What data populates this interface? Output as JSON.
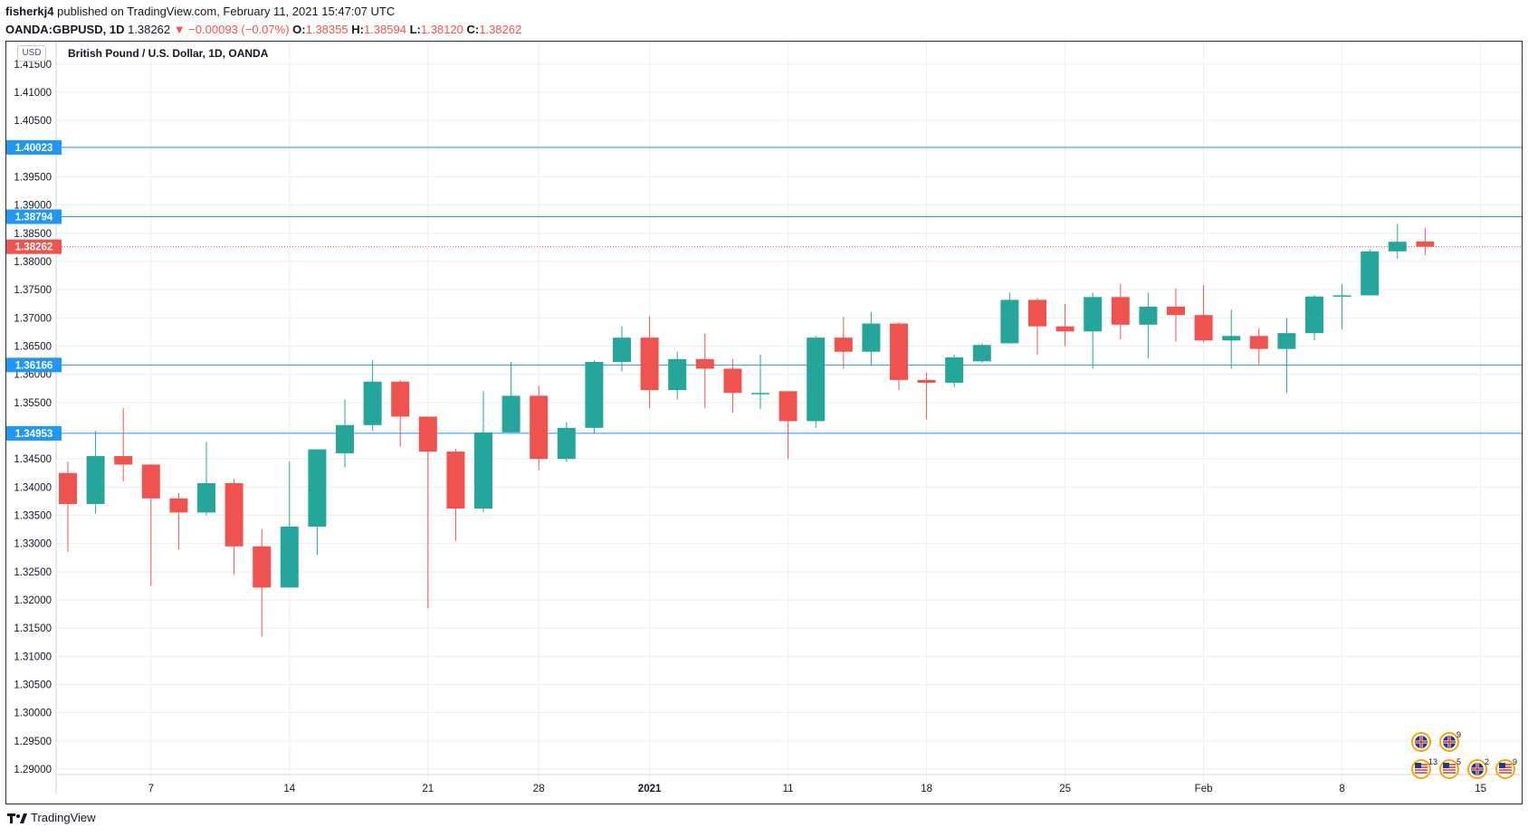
{
  "header": {
    "publisher": "fisherkj4",
    "published_text": "published on TradingView.com, February 11, 2021 15:47:07 UTC",
    "symbol": "OANDA:GBPUSD, 1D",
    "last": "1.38262",
    "change_arrow": "▼",
    "change": "−0.00093 (−0.07%)",
    "o_label": "O:",
    "o_value": "1.38355",
    "h_label": "H:",
    "h_value": "1.38594",
    "l_label": "L:",
    "l_value": "1.38120",
    "c_label": "C:",
    "c_value": "1.38262"
  },
  "currency_badge": "USD",
  "footer": {
    "brand": "TradingView"
  },
  "colors": {
    "up": "#26a69a",
    "down": "#ef5350",
    "hline": "#2196f3",
    "grid": "#eceef2"
  },
  "chart_data": {
    "type": "candlestick",
    "title": "British Pound / U.S. Dollar, 1D, OANDA",
    "ylim": [
      1.2875,
      1.4175
    ],
    "y_ticks": [
      "1.41500",
      "1.41000",
      "1.40500",
      "1.40000",
      "1.39500",
      "1.39000",
      "1.38500",
      "1.38000",
      "1.37500",
      "1.37000",
      "1.36500",
      "1.36000",
      "1.35500",
      "1.35000",
      "1.34500",
      "1.34000",
      "1.33500",
      "1.33000",
      "1.32500",
      "1.32000",
      "1.31500",
      "1.31000",
      "1.30500",
      "1.30000",
      "1.29500",
      "1.29000"
    ],
    "x_ticks": [
      {
        "label": "7",
        "index": 3
      },
      {
        "label": "14",
        "index": 8
      },
      {
        "label": "21",
        "index": 13
      },
      {
        "label": "28",
        "index": 17
      },
      {
        "label": "2021",
        "index": 21
      },
      {
        "label": "11",
        "index": 26
      },
      {
        "label": "18",
        "index": 31
      },
      {
        "label": "25",
        "index": 36
      },
      {
        "label": "Feb",
        "index": 41
      },
      {
        "label": "8",
        "index": 46
      },
      {
        "label": "15",
        "index": 51
      }
    ],
    "horizontal_lines": [
      {
        "value": 1.40023,
        "label": "1.40023"
      },
      {
        "value": 1.38794,
        "label": "1.38794"
      },
      {
        "value": 1.36166,
        "label": "1.36166"
      },
      {
        "value": 1.34953,
        "label": "1.34953"
      }
    ],
    "last_price": {
      "value": 1.38262,
      "label": "1.38262"
    },
    "candles": [
      {
        "date": "2020-12-02",
        "o": 1.3425,
        "h": 1.3445,
        "l": 1.3285,
        "c": 1.337
      },
      {
        "date": "2020-12-03",
        "o": 1.337,
        "h": 1.35,
        "l": 1.3353,
        "c": 1.3455
      },
      {
        "date": "2020-12-04",
        "o": 1.3455,
        "h": 1.354,
        "l": 1.341,
        "c": 1.344
      },
      {
        "date": "2020-12-07",
        "o": 1.344,
        "h": 1.344,
        "l": 1.3225,
        "c": 1.338
      },
      {
        "date": "2020-12-08",
        "o": 1.338,
        "h": 1.339,
        "l": 1.329,
        "c": 1.3355
      },
      {
        "date": "2020-12-09",
        "o": 1.3355,
        "h": 1.348,
        "l": 1.335,
        "c": 1.3407
      },
      {
        "date": "2020-12-10",
        "o": 1.3407,
        "h": 1.3415,
        "l": 1.3245,
        "c": 1.3295
      },
      {
        "date": "2020-12-11",
        "o": 1.3295,
        "h": 1.3325,
        "l": 1.3135,
        "c": 1.3222
      },
      {
        "date": "2020-12-14",
        "o": 1.3222,
        "h": 1.3445,
        "l": 1.3222,
        "c": 1.333
      },
      {
        "date": "2020-12-15",
        "o": 1.333,
        "h": 1.3467,
        "l": 1.328,
        "c": 1.3467
      },
      {
        "date": "2020-12-16",
        "o": 1.346,
        "h": 1.3555,
        "l": 1.3435,
        "c": 1.351
      },
      {
        "date": "2020-12-17",
        "o": 1.351,
        "h": 1.3625,
        "l": 1.35,
        "c": 1.3587
      },
      {
        "date": "2020-12-18",
        "o": 1.3587,
        "h": 1.359,
        "l": 1.3472,
        "c": 1.3525
      },
      {
        "date": "2020-12-21",
        "o": 1.3525,
        "h": 1.3525,
        "l": 1.3185,
        "c": 1.3463
      },
      {
        "date": "2020-12-22",
        "o": 1.3463,
        "h": 1.3468,
        "l": 1.3305,
        "c": 1.3362
      },
      {
        "date": "2020-12-23",
        "o": 1.3362,
        "h": 1.357,
        "l": 1.3355,
        "c": 1.3497
      },
      {
        "date": "2020-12-24",
        "o": 1.3497,
        "h": 1.3622,
        "l": 1.3495,
        "c": 1.3562
      },
      {
        "date": "2020-12-28",
        "o": 1.3562,
        "h": 1.358,
        "l": 1.343,
        "c": 1.345
      },
      {
        "date": "2020-12-29",
        "o": 1.345,
        "h": 1.3515,
        "l": 1.3445,
        "c": 1.3505
      },
      {
        "date": "2020-12-30",
        "o": 1.3505,
        "h": 1.3625,
        "l": 1.3495,
        "c": 1.3622
      },
      {
        "date": "2020-12-31",
        "o": 1.3622,
        "h": 1.3685,
        "l": 1.3605,
        "c": 1.3665
      },
      {
        "date": "2021-01-04",
        "o": 1.3665,
        "h": 1.3703,
        "l": 1.354,
        "c": 1.3572
      },
      {
        "date": "2021-01-05",
        "o": 1.3572,
        "h": 1.364,
        "l": 1.3555,
        "c": 1.3627
      },
      {
        "date": "2021-01-06",
        "o": 1.3627,
        "h": 1.3672,
        "l": 1.354,
        "c": 1.361
      },
      {
        "date": "2021-01-07",
        "o": 1.361,
        "h": 1.3627,
        "l": 1.3532,
        "c": 1.3567
      },
      {
        "date": "2021-01-08",
        "o": 1.3567,
        "h": 1.3635,
        "l": 1.3538,
        "c": 1.3567
      },
      {
        "date": "2021-01-11",
        "o": 1.357,
        "h": 1.357,
        "l": 1.345,
        "c": 1.3517
      },
      {
        "date": "2021-01-12",
        "o": 1.3517,
        "h": 1.3668,
        "l": 1.3505,
        "c": 1.3665
      },
      {
        "date": "2021-01-13",
        "o": 1.3665,
        "h": 1.3702,
        "l": 1.361,
        "c": 1.364
      },
      {
        "date": "2021-01-14",
        "o": 1.364,
        "h": 1.371,
        "l": 1.3615,
        "c": 1.369
      },
      {
        "date": "2021-01-15",
        "o": 1.369,
        "h": 1.3692,
        "l": 1.3572,
        "c": 1.359
      },
      {
        "date": "2021-01-18",
        "o": 1.359,
        "h": 1.3603,
        "l": 1.352,
        "c": 1.3585
      },
      {
        "date": "2021-01-19",
        "o": 1.3585,
        "h": 1.3635,
        "l": 1.3577,
        "c": 1.363
      },
      {
        "date": "2021-01-20",
        "o": 1.3623,
        "h": 1.3655,
        "l": 1.362,
        "c": 1.3652
      },
      {
        "date": "2021-01-21",
        "o": 1.3655,
        "h": 1.3745,
        "l": 1.3655,
        "c": 1.3732
      },
      {
        "date": "2021-01-22",
        "o": 1.3732,
        "h": 1.3735,
        "l": 1.3635,
        "c": 1.3685
      },
      {
        "date": "2021-01-25",
        "o": 1.3685,
        "h": 1.3725,
        "l": 1.365,
        "c": 1.3676
      },
      {
        "date": "2021-01-26",
        "o": 1.3676,
        "h": 1.3745,
        "l": 1.361,
        "c": 1.3737
      },
      {
        "date": "2021-01-27",
        "o": 1.3737,
        "h": 1.376,
        "l": 1.3662,
        "c": 1.3688
      },
      {
        "date": "2021-01-28",
        "o": 1.3688,
        "h": 1.3745,
        "l": 1.3628,
        "c": 1.372
      },
      {
        "date": "2021-01-29",
        "o": 1.372,
        "h": 1.3752,
        "l": 1.3658,
        "c": 1.3705
      },
      {
        "date": "2021-02-01",
        "o": 1.3705,
        "h": 1.3758,
        "l": 1.3657,
        "c": 1.366
      },
      {
        "date": "2021-02-02",
        "o": 1.366,
        "h": 1.3715,
        "l": 1.361,
        "c": 1.3668
      },
      {
        "date": "2021-02-03",
        "o": 1.3668,
        "h": 1.3682,
        "l": 1.3617,
        "c": 1.3645
      },
      {
        "date": "2021-02-04",
        "o": 1.3645,
        "h": 1.37,
        "l": 1.3567,
        "c": 1.3673
      },
      {
        "date": "2021-02-05",
        "o": 1.3673,
        "h": 1.374,
        "l": 1.366,
        "c": 1.3738
      },
      {
        "date": "2021-02-08",
        "o": 1.3738,
        "h": 1.376,
        "l": 1.368,
        "c": 1.374
      },
      {
        "date": "2021-02-09",
        "o": 1.374,
        "h": 1.3822,
        "l": 1.374,
        "c": 1.3818
      },
      {
        "date": "2021-02-10",
        "o": 1.3818,
        "h": 1.3867,
        "l": 1.3805,
        "c": 1.3835
      },
      {
        "date": "2021-02-11",
        "o": 1.38355,
        "h": 1.38594,
        "l": 1.3812,
        "c": 1.38262
      }
    ],
    "event_markers": [
      {
        "flag": "uk",
        "count": ""
      },
      {
        "flag": "uk",
        "count": "9"
      },
      {
        "flag": "us",
        "count": "13"
      },
      {
        "flag": "us",
        "count": "5"
      },
      {
        "flag": "uk",
        "count": "2"
      },
      {
        "flag": "us",
        "count": "9"
      }
    ]
  }
}
